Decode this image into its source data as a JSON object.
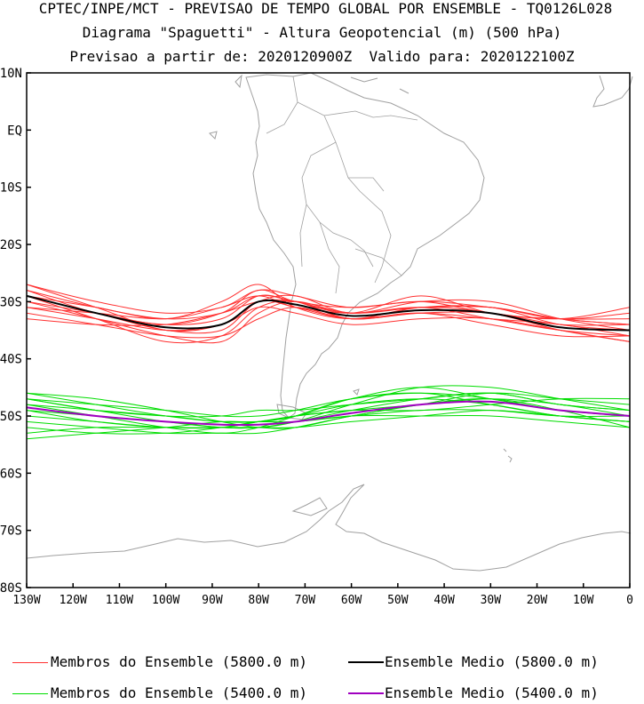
{
  "chart_data": {
    "type": "line",
    "title": "CPTEC/INPE/MCT - PREVISAO DE TEMPO GLOBAL POR ENSEMBLE - TQ0126L028",
    "subtitle": "Diagrama \"Spaguetti\" - Altura Geopotencial (m) (500 hPa)",
    "subtitle2": "Previsao a partir de: 2020120900Z  Valido para: 2020122100Z",
    "xlim": [
      -130,
      0
    ],
    "ylim": [
      -80,
      10
    ],
    "x_ticks": [
      {
        "v": -130,
        "label": "130W"
      },
      {
        "v": -120,
        "label": "120W"
      },
      {
        "v": -110,
        "label": "110W"
      },
      {
        "v": -100,
        "label": "100W"
      },
      {
        "v": -90,
        "label": "90W"
      },
      {
        "v": -80,
        "label": "80W"
      },
      {
        "v": -70,
        "label": "70W"
      },
      {
        "v": -60,
        "label": "60W"
      },
      {
        "v": -50,
        "label": "50W"
      },
      {
        "v": -40,
        "label": "40W"
      },
      {
        "v": -30,
        "label": "30W"
      },
      {
        "v": -20,
        "label": "20W"
      },
      {
        "v": -10,
        "label": "10W"
      },
      {
        "v": 0,
        "label": "0"
      }
    ],
    "y_ticks": [
      {
        "v": 10,
        "label": "10N"
      },
      {
        "v": 0,
        "label": "EQ"
      },
      {
        "v": -10,
        "label": "10S"
      },
      {
        "v": -20,
        "label": "20S"
      },
      {
        "v": -30,
        "label": "30S"
      },
      {
        "v": -40,
        "label": "40S"
      },
      {
        "v": -50,
        "label": "50S"
      },
      {
        "v": -60,
        "label": "60S"
      },
      {
        "v": -70,
        "label": "70S"
      },
      {
        "v": -80,
        "label": "80S"
      }
    ],
    "knots_lon": [
      -130,
      -115,
      -100,
      -88,
      -80,
      -72,
      -60,
      -45,
      -30,
      -15,
      0
    ],
    "series": [
      {
        "group": "members",
        "level": 5800,
        "color": "#ff3030",
        "lats": [
          [
            -28,
            -31,
            -33,
            -32,
            -29,
            -30,
            -32,
            -31,
            -31,
            -33,
            -32
          ],
          [
            -29,
            -32,
            -35,
            -35,
            -30,
            -31,
            -33,
            -32,
            -32,
            -34,
            -34
          ],
          [
            -30,
            -33,
            -36,
            -37,
            -32,
            -30,
            -32,
            -31,
            -33,
            -35,
            -36
          ],
          [
            -27,
            -30,
            -32,
            -31,
            -28,
            -29,
            -31,
            -30,
            -32,
            -33,
            -31
          ],
          [
            -31,
            -33,
            -35,
            -34,
            -31,
            -32,
            -34,
            -33,
            -33,
            -35,
            -37
          ],
          [
            -29,
            -31,
            -33,
            -30,
            -27,
            -31,
            -33,
            -31,
            -31,
            -34,
            -35
          ],
          [
            -28,
            -32,
            -34,
            -33,
            -29,
            -30,
            -32,
            -29,
            -32,
            -33,
            -33
          ],
          [
            -32,
            -34,
            -36,
            -36,
            -33,
            -31,
            -33,
            -32,
            -34,
            -36,
            -36
          ],
          [
            -30,
            -32,
            -34,
            -32,
            -28,
            -30,
            -31,
            -30,
            -31,
            -33,
            -34
          ],
          [
            -27,
            -31,
            -35,
            -34,
            -30,
            -29,
            -32,
            -30,
            -30,
            -33,
            -35
          ],
          [
            -33,
            -34,
            -34,
            -32,
            -30,
            -30,
            -33,
            -32,
            -33,
            -34,
            -36
          ],
          [
            -29,
            -33,
            -37,
            -36,
            -31,
            -30,
            -33,
            -31,
            -32,
            -35,
            -37
          ],
          [
            -31,
            -32,
            -33,
            -31,
            -29,
            -31,
            -32,
            -31,
            -31,
            -33,
            -34
          ]
        ]
      },
      {
        "group": "mean",
        "name": "Ensemble Medio (5800.0 m)",
        "level": 5800,
        "color": "#000000",
        "lats": [
          -29,
          -32,
          -34.5,
          -34,
          -30,
          -30.5,
          -32.5,
          -31.5,
          -32,
          -34.5,
          -35
        ]
      },
      {
        "group": "members",
        "level": 5400,
        "color": "#00dd00",
        "lats": [
          [
            -46,
            -48,
            -50,
            -51,
            -51,
            -50,
            -47,
            -45,
            -47,
            -49,
            -50
          ],
          [
            -47,
            -49,
            -51,
            -52,
            -52,
            -51,
            -49,
            -47,
            -46,
            -48,
            -49
          ],
          [
            -48,
            -50,
            -52,
            -53,
            -52,
            -50,
            -47,
            -46,
            -48,
            -50,
            -51
          ],
          [
            -49,
            -51,
            -52,
            -52,
            -51,
            -50,
            -49,
            -48,
            -47,
            -48,
            -50
          ],
          [
            -47,
            -48,
            -49,
            -50,
            -50,
            -49,
            -47,
            -46,
            -47,
            -49,
            -50
          ],
          [
            -50,
            -51,
            -52,
            -52,
            -52,
            -52,
            -51,
            -50,
            -49,
            -50,
            -51
          ],
          [
            -46,
            -47,
            -49,
            -51,
            -52,
            -52,
            -50,
            -48,
            -46,
            -47,
            -48
          ],
          [
            -51,
            -52,
            -53,
            -53,
            -53,
            -52,
            -50,
            -48,
            -47,
            -49,
            -52
          ],
          [
            -48,
            -49,
            -50,
            -51,
            -51,
            -51,
            -50,
            -49,
            -49,
            -50,
            -50
          ],
          [
            -53,
            -52,
            -52,
            -52,
            -51,
            -50,
            -48,
            -47,
            -48,
            -50,
            -51
          ],
          [
            -47,
            -49,
            -50,
            -50,
            -49,
            -49,
            -48,
            -47,
            -46,
            -48,
            -49
          ],
          [
            -52,
            -53,
            -53,
            -52,
            -51,
            -51,
            -50,
            -50,
            -50,
            -51,
            -52
          ],
          [
            -49,
            -50,
            -51,
            -52,
            -52,
            -51,
            -48,
            -45,
            -45,
            -47,
            -49
          ],
          [
            -54,
            -53,
            -52,
            -51,
            -51,
            -50,
            -49,
            -49,
            -48,
            -47,
            -47
          ]
        ]
      },
      {
        "group": "mean",
        "name": "Ensemble Medio (5400.0 m)",
        "level": 5400,
        "color": "#a000c0",
        "lats": [
          -48.5,
          -50,
          -51,
          -51.5,
          -51.5,
          -51,
          -49.5,
          -48,
          -47.5,
          -49,
          -50
        ]
      }
    ],
    "coastline_color": "#a0a0a0"
  },
  "legend": {
    "items": [
      {
        "label": "Membros do Ensemble (5800.0 m)",
        "color": "#ff3030"
      },
      {
        "label": "Ensemble Medio (5800.0 m)",
        "color": "#000000"
      },
      {
        "label": "Membros do Ensemble (5400.0 m)",
        "color": "#00dd00"
      },
      {
        "label": "Ensemble Medio (5400.0 m)",
        "color": "#a000c0"
      }
    ]
  }
}
